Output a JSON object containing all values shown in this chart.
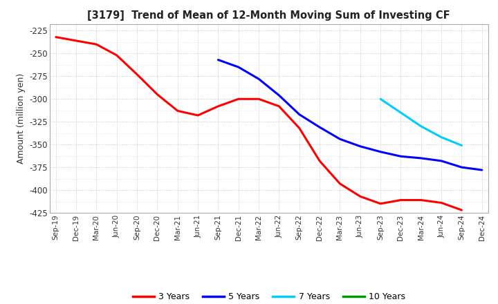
{
  "title": "[3179]  Trend of Mean of 12-Month Moving Sum of Investing CF",
  "ylabel": "Amount (million yen)",
  "ylim": [
    -425,
    -218
  ],
  "yticks": [
    -425,
    -400,
    -375,
    -350,
    -325,
    -300,
    -275,
    -250,
    -225
  ],
  "background_color": "#ffffff",
  "grid_color": "#aaaaaa",
  "series": {
    "3years": {
      "color": "#ff0000",
      "label": "3 Years",
      "x": [
        "Sep-19",
        "Dec-19",
        "Mar-20",
        "Jun-20",
        "Sep-20",
        "Dec-20",
        "Mar-21",
        "Jun-21",
        "Sep-21",
        "Dec-21",
        "Mar-22",
        "Jun-22",
        "Sep-22",
        "Dec-22",
        "Mar-23",
        "Jun-23",
        "Sep-23",
        "Dec-23",
        "Mar-24",
        "Jun-24",
        "Sep-24"
      ],
      "y": [
        -232,
        -236,
        -240,
        -252,
        -273,
        -295,
        -313,
        -318,
        -308,
        -300,
        -300,
        -308,
        -332,
        -368,
        -393,
        -407,
        -415,
        -411,
        -411,
        -414,
        -422
      ]
    },
    "5years": {
      "color": "#0000ff",
      "label": "5 Years",
      "x": [
        "Sep-21",
        "Dec-21",
        "Mar-22",
        "Jun-22",
        "Sep-22",
        "Dec-22",
        "Mar-23",
        "Jun-23",
        "Sep-23",
        "Dec-23",
        "Mar-24",
        "Jun-24",
        "Sep-24",
        "Dec-24"
      ],
      "y": [
        -257,
        -265,
        -278,
        -296,
        -317,
        -331,
        -344,
        -352,
        -358,
        -363,
        -365,
        -368,
        -375,
        -378
      ]
    },
    "7years": {
      "color": "#00ccff",
      "label": "7 Years",
      "x": [
        "Sep-23",
        "Dec-23",
        "Mar-24",
        "Jun-24",
        "Sep-24"
      ],
      "y": [
        -300,
        -315,
        -330,
        -342,
        -351
      ]
    },
    "10years": {
      "color": "#009900",
      "label": "10 Years",
      "x": [],
      "y": []
    }
  },
  "xtick_labels": [
    "Sep-19",
    "Dec-19",
    "Mar-20",
    "Jun-20",
    "Sep-20",
    "Dec-20",
    "Mar-21",
    "Jun-21",
    "Sep-21",
    "Dec-21",
    "Mar-22",
    "Jun-22",
    "Sep-22",
    "Dec-22",
    "Mar-23",
    "Jun-23",
    "Sep-23",
    "Dec-23",
    "Mar-24",
    "Jun-24",
    "Sep-24",
    "Dec-24"
  ],
  "legend_colors": [
    "#ff0000",
    "#0000ff",
    "#00ccff",
    "#009900"
  ],
  "legend_labels": [
    "3 Years",
    "5 Years",
    "7 Years",
    "10 Years"
  ]
}
